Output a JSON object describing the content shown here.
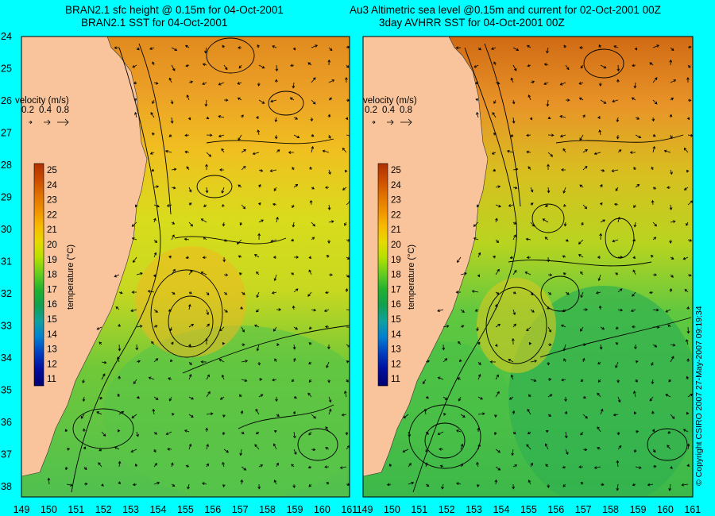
{
  "panels": [
    {
      "title_line1": "BRAN2.1 sfc height @ 0.15m for 04-Oct-2001",
      "title_line2": "BRAN2.1 SST for 04-Oct-2001"
    },
    {
      "title_line1": "Au3 Altimetric sea level  @0.15m and current for 02-Oct-2001 00Z",
      "title_line2": "3day AVHRR SST for 04-Oct-2001 00Z"
    }
  ],
  "velocity_legend": {
    "label": "velocity (m/s)",
    "scale_values": [
      "0.2",
      "0.4",
      "0.8"
    ]
  },
  "colorbar": {
    "label": "temperature (°C)",
    "ticks": [
      "25",
      "24",
      "23",
      "22",
      "21",
      "20",
      "19",
      "18",
      "17",
      "16",
      "15",
      "14",
      "13",
      "12",
      "11"
    ],
    "colors": [
      "#b03000",
      "#cc4a00",
      "#e07000",
      "#f09000",
      "#f8b800",
      "#e8d800",
      "#b8e000",
      "#60cc20",
      "#20b030",
      "#10a050",
      "#10a0a0",
      "#0080d0",
      "#0040c0",
      "#0010a0",
      "#000070"
    ]
  },
  "y_axis_labels": [
    "24",
    "25",
    "26",
    "27",
    "28",
    "29",
    "30",
    "31",
    "32",
    "33",
    "34",
    "35",
    "36",
    "37",
    "38"
  ],
  "x_axis_labels": [
    "149",
    "150",
    "151",
    "152",
    "153",
    "154",
    "155",
    "156",
    "157",
    "158",
    "159",
    "160",
    "161"
  ],
  "copyright": "© Copyright CSIRO 2007   27-May-2007 09:19:34",
  "colors": {
    "background": "#00ffff",
    "land": "#f9c49b",
    "ocean_warm": "#e08a1e",
    "ocean_mid": "#c8d820",
    "ocean_cool": "#3cb84a"
  }
}
